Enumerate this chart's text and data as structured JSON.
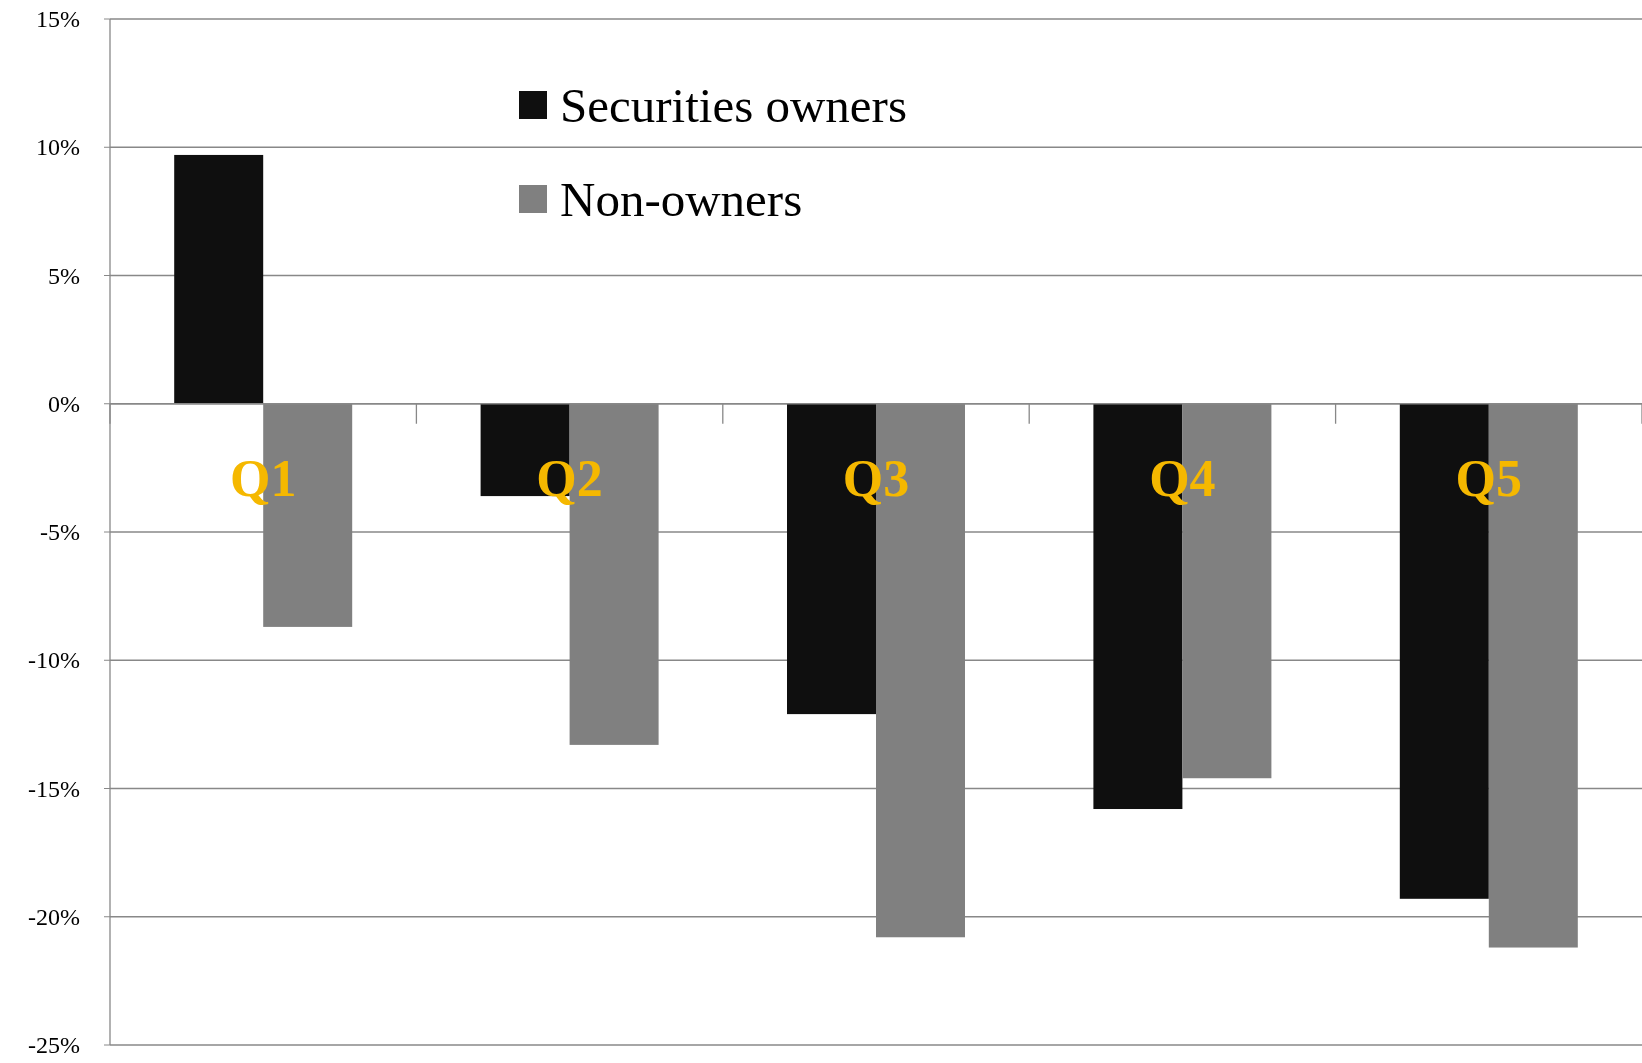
{
  "chart_data": {
    "type": "bar",
    "categories": [
      "Q1",
      "Q2",
      "Q3",
      "Q4",
      "Q5"
    ],
    "series": [
      {
        "name": "Securities owners",
        "color": "#0f0f0f",
        "values": [
          9.7,
          -3.6,
          -12.1,
          -15.8,
          -19.3
        ]
      },
      {
        "name": "Non-owners",
        "color": "#808080",
        "values": [
          -8.7,
          -13.3,
          -20.8,
          -14.6,
          -21.2
        ]
      }
    ],
    "ylim": [
      -25,
      15
    ],
    "yticks": [
      {
        "value": 15,
        "label": "15%"
      },
      {
        "value": 10,
        "label": "10%"
      },
      {
        "value": 5,
        "label": "5%"
      },
      {
        "value": 0,
        "label": "0%"
      },
      {
        "value": -5,
        "label": "-5%"
      },
      {
        "value": -10,
        "label": "-10%"
      },
      {
        "value": -15,
        "label": "-15%"
      },
      {
        "value": -20,
        "label": "-20%"
      },
      {
        "value": -25,
        "label": "-25%"
      }
    ],
    "grid": "y",
    "legend": "top"
  }
}
